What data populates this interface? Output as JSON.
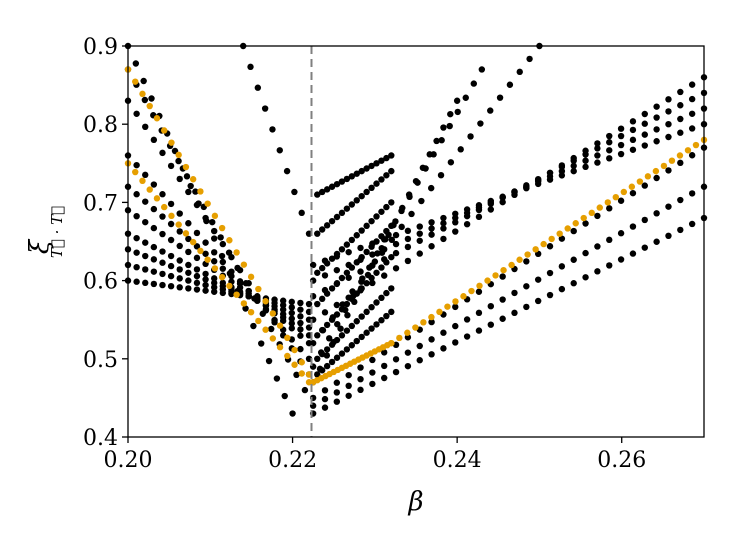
{
  "chart_data": {
    "type": "scatter",
    "xlabel": "β",
    "ylabel": "ξ",
    "ylabel_subscript": "T⃗ · T⃗",
    "xlim": [
      0.2,
      0.27
    ],
    "ylim": [
      0.4,
      0.9
    ],
    "xticks": [
      "0.20",
      "0.22",
      "0.24",
      "0.26"
    ],
    "xtick_values": [
      0.2,
      0.22,
      0.24,
      0.26
    ],
    "yticks": [
      "0.4",
      "0.5",
      "0.6",
      "0.7",
      "0.8",
      "0.9"
    ],
    "ytick_values": [
      0.4,
      0.5,
      0.6,
      0.7,
      0.8,
      0.9
    ],
    "vline_x": 0.2223,
    "vline_color": "#808080",
    "grid": false,
    "series": [
      {
        "color": "#000000",
        "families": [
          {
            "x0": 0.2,
            "x1": 0.22,
            "y0": 0.9,
            "y1": 0.43,
            "n": 22
          },
          {
            "x0": 0.2,
            "x1": 0.2215,
            "y0": 0.87,
            "y1": 0.46,
            "n": 22
          },
          {
            "x0": 0.2,
            "x1": 0.222,
            "y0": 0.83,
            "y1": 0.48,
            "n": 22
          },
          {
            "x0": 0.2,
            "x1": 0.222,
            "y0": 0.76,
            "y1": 0.5,
            "n": 22
          },
          {
            "x0": 0.2,
            "x1": 0.222,
            "y0": 0.72,
            "y1": 0.52,
            "n": 22
          },
          {
            "x0": 0.2,
            "x1": 0.222,
            "y0": 0.69,
            "y1": 0.53,
            "n": 22
          },
          {
            "x0": 0.2,
            "x1": 0.222,
            "y0": 0.66,
            "y1": 0.54,
            "n": 22
          },
          {
            "x0": 0.2,
            "x1": 0.222,
            "y0": 0.64,
            "y1": 0.55,
            "n": 22
          },
          {
            "x0": 0.2,
            "x1": 0.222,
            "y0": 0.62,
            "y1": 0.56,
            "n": 22
          },
          {
            "x0": 0.2,
            "x1": 0.222,
            "y0": 0.6,
            "y1": 0.57,
            "n": 22
          },
          {
            "x0": 0.214,
            "x1": 0.222,
            "y0": 0.9,
            "y1": 0.66,
            "n": 10
          },
          {
            "x0": 0.2225,
            "x1": 0.24,
            "y0": 0.47,
            "y1": 0.83,
            "n": 22
          },
          {
            "x0": 0.2225,
            "x1": 0.243,
            "y0": 0.49,
            "y1": 0.87,
            "n": 22
          },
          {
            "x0": 0.2225,
            "x1": 0.25,
            "y0": 0.52,
            "y1": 0.9,
            "n": 24
          },
          {
            "x0": 0.2225,
            "x1": 0.27,
            "y0": 0.55,
            "y1": 0.86,
            "n": 34
          },
          {
            "x0": 0.2225,
            "x1": 0.27,
            "y0": 0.58,
            "y1": 0.84,
            "n": 34
          },
          {
            "x0": 0.2225,
            "x1": 0.27,
            "y0": 0.6,
            "y1": 0.82,
            "n": 34
          },
          {
            "x0": 0.2225,
            "x1": 0.27,
            "y0": 0.62,
            "y1": 0.8,
            "n": 34
          },
          {
            "x0": 0.2225,
            "x1": 0.27,
            "y0": 0.45,
            "y1": 0.77,
            "n": 34
          },
          {
            "x0": 0.2225,
            "x1": 0.27,
            "y0": 0.44,
            "y1": 0.72,
            "n": 34
          },
          {
            "x0": 0.2225,
            "x1": 0.27,
            "y0": 0.43,
            "y1": 0.68,
            "n": 34
          },
          {
            "x0": 0.223,
            "x1": 0.232,
            "y0": 0.71,
            "y1": 0.76,
            "n": 16
          },
          {
            "x0": 0.223,
            "x1": 0.232,
            "y0": 0.66,
            "y1": 0.74,
            "n": 16
          },
          {
            "x0": 0.223,
            "x1": 0.232,
            "y0": 0.61,
            "y1": 0.7,
            "n": 16
          },
          {
            "x0": 0.223,
            "x1": 0.232,
            "y0": 0.57,
            "y1": 0.67,
            "n": 16
          },
          {
            "x0": 0.223,
            "x1": 0.232,
            "y0": 0.53,
            "y1": 0.63,
            "n": 16
          },
          {
            "x0": 0.223,
            "x1": 0.232,
            "y0": 0.5,
            "y1": 0.59,
            "n": 16
          },
          {
            "x0": 0.223,
            "x1": 0.232,
            "y0": 0.48,
            "y1": 0.56,
            "n": 16
          }
        ]
      },
      {
        "color": "#E69F00",
        "families": [
          {
            "x0": 0.2,
            "x1": 0.222,
            "y0": 0.87,
            "y1": 0.48,
            "n": 26
          },
          {
            "x0": 0.2,
            "x1": 0.222,
            "y0": 0.75,
            "y1": 0.47,
            "n": 26
          },
          {
            "x0": 0.2225,
            "x1": 0.232,
            "y0": 0.47,
            "y1": 0.52,
            "n": 20
          },
          {
            "x0": 0.232,
            "x1": 0.27,
            "y0": 0.52,
            "y1": 0.78,
            "n": 40
          }
        ]
      }
    ]
  }
}
